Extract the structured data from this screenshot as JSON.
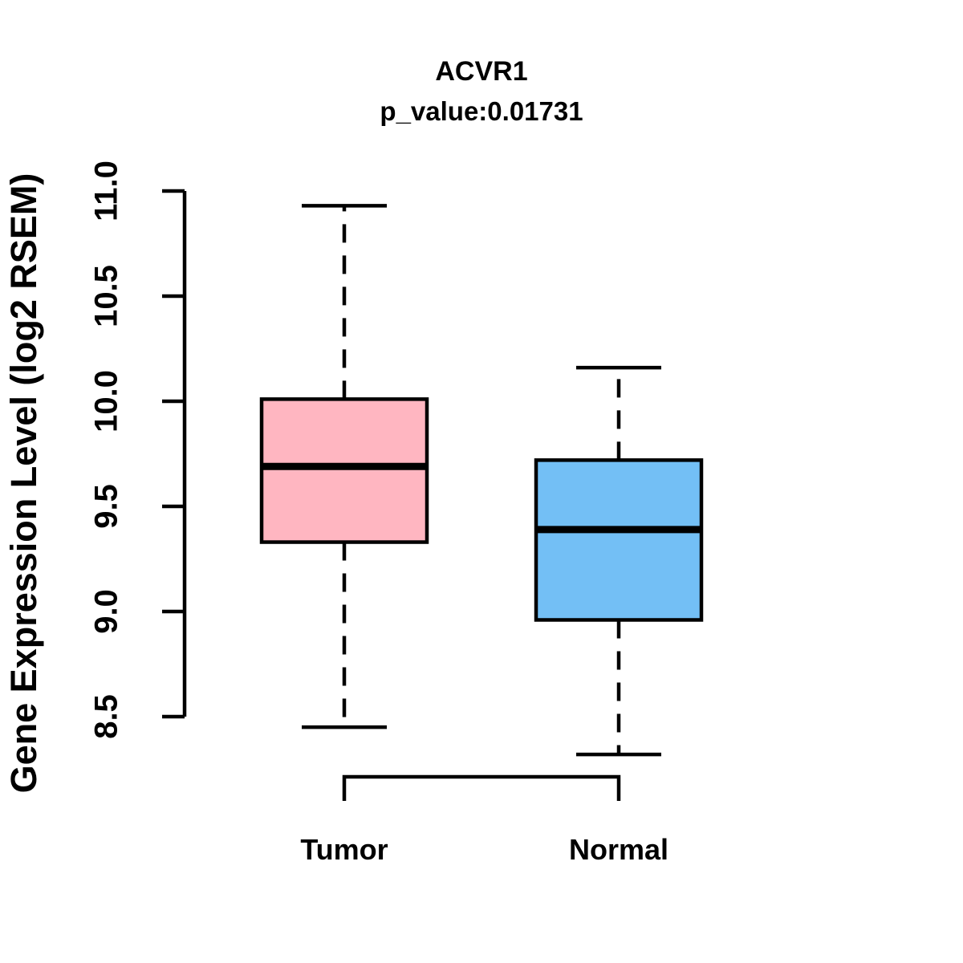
{
  "title": "ACVR1",
  "subtitle": "p_value:0.01731",
  "y_axis": {
    "label": "Gene Expression Level (log2 RSEM)",
    "tick_labels": [
      "8.5",
      "9.0",
      "9.5",
      "10.0",
      "10.5",
      "11.0"
    ]
  },
  "x_axis": {
    "labels": [
      "Tumor",
      "Normal"
    ]
  },
  "colors": {
    "tumor_box": "#FFB6C1",
    "normal_box": "#73BFF5",
    "line": "#000000",
    "background": "#FFFFFF"
  },
  "chart_data": {
    "type": "boxplot",
    "title": "ACVR1",
    "subtitle": "p_value:0.01731",
    "xlabel": "",
    "ylabel": "Gene Expression Level (log2 RSEM)",
    "ylim": [
      8.5,
      11.0
    ],
    "y_ticks": [
      8.5,
      9.0,
      9.5,
      10.0,
      10.5,
      11.0
    ],
    "grid": false,
    "legend": "none",
    "categories": [
      "Tumor",
      "Normal"
    ],
    "series": [
      {
        "name": "Tumor",
        "color": "#FFB6C1",
        "whisker_low": 8.45,
        "q1": 9.33,
        "median": 9.69,
        "q3": 10.01,
        "whisker_high": 10.93
      },
      {
        "name": "Normal",
        "color": "#73BFF5",
        "whisker_low": 8.32,
        "q1": 8.96,
        "median": 9.39,
        "q3": 9.72,
        "whisker_high": 10.16
      }
    ],
    "whisker_style": "dashed",
    "connector_bracket": true
  }
}
